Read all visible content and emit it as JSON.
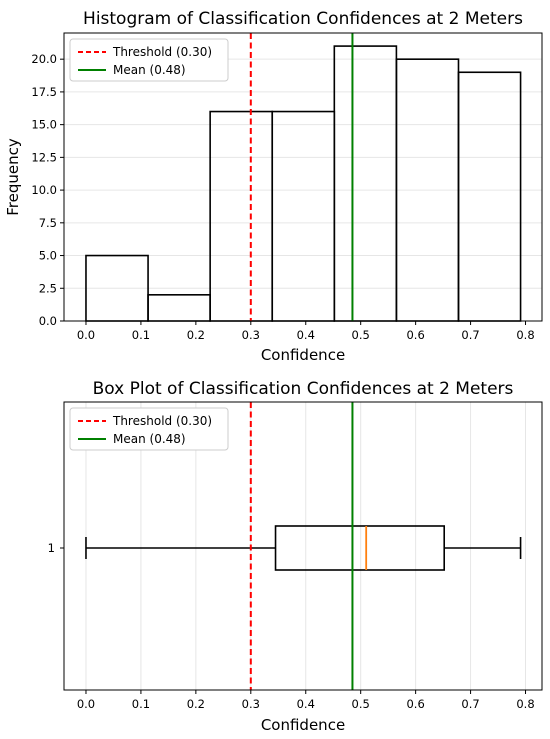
{
  "chart_data": [
    {
      "type": "bar",
      "subtype": "histogram",
      "title": "Histogram of Classification Confidences at 2 Meters",
      "xlabel": "Confidence",
      "ylabel": "Frequency",
      "xlim": [
        -0.04,
        0.83
      ],
      "ylim": [
        0,
        22
      ],
      "xticks": [
        "0.0",
        "0.1",
        "0.2",
        "0.3",
        "0.4",
        "0.5",
        "0.6",
        "0.7",
        "0.8"
      ],
      "xtick_values": [
        0.0,
        0.1,
        0.2,
        0.3,
        0.4,
        0.5,
        0.6,
        0.7,
        0.8
      ],
      "yticks": [
        "0.0",
        "2.5",
        "5.0",
        "7.5",
        "10.0",
        "12.5",
        "15.0",
        "17.5",
        "20.0"
      ],
      "ytick_values": [
        0,
        2.5,
        5,
        7.5,
        10,
        12.5,
        15,
        17.5,
        20
      ],
      "bin_edges": [
        0.0,
        0.113,
        0.226,
        0.339,
        0.452,
        0.565,
        0.678,
        0.791
      ],
      "counts": [
        5,
        2,
        16,
        16,
        21,
        20,
        19
      ],
      "grid": "y",
      "legend": {
        "placement": "top-left",
        "entries": [
          {
            "label": "Threshold (0.30)",
            "color": "#ff0000",
            "style": "dashed"
          },
          {
            "label": "Mean (0.48)",
            "color": "#008000",
            "style": "solid"
          }
        ]
      },
      "reference_lines": [
        {
          "name": "Threshold (0.30)",
          "x": 0.3,
          "color": "#ff0000",
          "style": "dashed"
        },
        {
          "name": "Mean (0.48)",
          "x": 0.485,
          "color": "#008000",
          "style": "solid"
        }
      ]
    },
    {
      "type": "box",
      "title": "Box Plot of Classification Confidences at 2 Meters",
      "xlabel": "Confidence",
      "xlim": [
        -0.04,
        0.83
      ],
      "xticks": [
        "0.0",
        "0.1",
        "0.2",
        "0.3",
        "0.4",
        "0.5",
        "0.6",
        "0.7",
        "0.8"
      ],
      "xtick_values": [
        0.0,
        0.1,
        0.2,
        0.3,
        0.4,
        0.5,
        0.6,
        0.7,
        0.8
      ],
      "yticks": [
        "1"
      ],
      "orientation": "horizontal",
      "box": {
        "min": 0.0,
        "q1": 0.345,
        "median": 0.51,
        "q3": 0.652,
        "max": 0.791
      },
      "median_color": "#ff7f0e",
      "grid": "x",
      "legend": {
        "placement": "top-left",
        "entries": [
          {
            "label": "Threshold (0.30)",
            "color": "#ff0000",
            "style": "dashed"
          },
          {
            "label": "Mean (0.48)",
            "color": "#008000",
            "style": "solid"
          }
        ]
      },
      "reference_lines": [
        {
          "name": "Threshold (0.30)",
          "x": 0.3,
          "color": "#ff0000",
          "style": "dashed"
        },
        {
          "name": "Mean (0.48)",
          "x": 0.485,
          "color": "#008000",
          "style": "solid"
        }
      ]
    }
  ]
}
